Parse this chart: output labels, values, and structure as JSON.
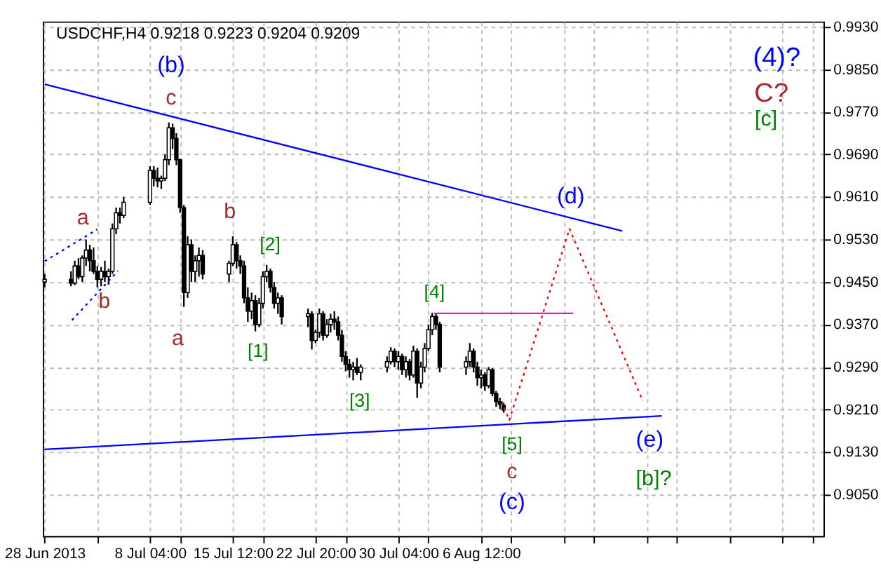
{
  "chart_data": {
    "type": "candlestick",
    "title": "USDCHF,H4  0.9218 0.9223 0.9204 0.9209",
    "x": [
      "2013-06-28T20:00",
      "2013-07-01T04:00",
      "2013-07-01T12:00",
      "2013-07-01T20:00",
      "2013-07-02T04:00",
      "2013-07-02T12:00",
      "2013-07-02T20:00",
      "2013-07-03T04:00",
      "2013-07-03T12:00",
      "2013-07-03T20:00",
      "2013-07-04T04:00",
      "2013-07-04T12:00",
      "2013-07-04T20:00",
      "2013-07-05T04:00",
      "2013-07-05T12:00",
      "2013-07-05T20:00",
      "2013-07-08T04:00",
      "2013-07-08T12:00",
      "2013-07-08T20:00",
      "2013-07-09T04:00",
      "2013-07-09T12:00",
      "2013-07-09T20:00",
      "2013-07-10T04:00",
      "2013-07-10T12:00",
      "2013-07-10T20:00",
      "2013-07-11T04:00",
      "2013-07-11T12:00",
      "2013-07-11T20:00",
      "2013-07-12T04:00",
      "2013-07-12T12:00",
      "2013-07-12T20:00",
      "2013-07-15T04:00",
      "2013-07-15T12:00",
      "2013-07-15T20:00",
      "2013-07-16T04:00",
      "2013-07-16T12:00",
      "2013-07-16T20:00",
      "2013-07-17T04:00",
      "2013-07-17T12:00",
      "2013-07-17T20:00",
      "2013-07-18T04:00",
      "2013-07-18T12:00",
      "2013-07-18T20:00",
      "2013-07-19T04:00",
      "2013-07-19T12:00",
      "2013-07-19T20:00",
      "2013-07-22T04:00",
      "2013-07-22T12:00",
      "2013-07-22T20:00",
      "2013-07-23T04:00",
      "2013-07-23T12:00",
      "2013-07-23T20:00",
      "2013-07-24T04:00",
      "2013-07-24T12:00",
      "2013-07-24T20:00",
      "2013-07-25T04:00",
      "2013-07-25T12:00",
      "2013-07-25T20:00",
      "2013-07-26T04:00",
      "2013-07-26T12:00",
      "2013-07-26T20:00",
      "2013-07-29T04:00",
      "2013-07-29T12:00",
      "2013-07-29T20:00",
      "2013-07-30T04:00",
      "2013-07-30T12:00",
      "2013-07-30T20:00",
      "2013-07-31T04:00",
      "2013-07-31T12:00",
      "2013-07-31T20:00",
      "2013-08-01T04:00",
      "2013-08-01T12:00",
      "2013-08-01T20:00",
      "2013-08-02T04:00",
      "2013-08-02T12:00",
      "2013-08-02T20:00",
      "2013-08-05T04:00",
      "2013-08-05T12:00",
      "2013-08-05T20:00",
      "2013-08-06T04:00",
      "2013-08-06T12:00",
      "2013-08-06T20:00",
      "2013-08-07T04:00",
      "2013-08-07T12:00",
      "2013-08-07T20:00",
      "2013-08-08T04:00",
      "2013-08-08T12:00"
    ],
    "ohlc": [
      [
        0.945,
        0.9465,
        0.944,
        0.9455
      ],
      [
        0.9455,
        0.947,
        0.9442,
        0.9448
      ],
      [
        0.9448,
        0.949,
        0.9444,
        0.948
      ],
      [
        0.948,
        0.9495,
        0.9455,
        0.946
      ],
      [
        0.946,
        0.95,
        0.945,
        0.9495
      ],
      [
        0.9495,
        0.953,
        0.948,
        0.951
      ],
      [
        0.951,
        0.952,
        0.947,
        0.949
      ],
      [
        0.949,
        0.9515,
        0.9465,
        0.947
      ],
      [
        0.947,
        0.948,
        0.944,
        0.9455
      ],
      [
        0.9455,
        0.9478,
        0.9442,
        0.947
      ],
      [
        0.947,
        0.949,
        0.945,
        0.946
      ],
      [
        0.946,
        0.9475,
        0.9445,
        0.947
      ],
      [
        0.947,
        0.956,
        0.9465,
        0.955
      ],
      [
        0.955,
        0.959,
        0.954,
        0.958
      ],
      [
        0.958,
        0.959,
        0.956,
        0.9575
      ],
      [
        0.9575,
        0.961,
        0.957,
        0.96
      ],
      [
        0.96,
        0.9668,
        0.9595,
        0.966
      ],
      [
        0.966,
        0.9668,
        0.963,
        0.9645
      ],
      [
        0.9645,
        0.9665,
        0.9628,
        0.964
      ],
      [
        0.964,
        0.965,
        0.9625,
        0.9645
      ],
      [
        0.9645,
        0.969,
        0.964,
        0.968
      ],
      [
        0.968,
        0.975,
        0.967,
        0.974
      ],
      [
        0.974,
        0.9748,
        0.97,
        0.972
      ],
      [
        0.972,
        0.973,
        0.967,
        0.968
      ],
      [
        0.968,
        0.9682,
        0.958,
        0.959
      ],
      [
        0.959,
        0.9595,
        0.9403,
        0.943
      ],
      [
        0.943,
        0.9536,
        0.942,
        0.952
      ],
      [
        0.952,
        0.953,
        0.945,
        0.947
      ],
      [
        0.947,
        0.95,
        0.945,
        0.949
      ],
      [
        0.949,
        0.9515,
        0.946,
        0.95
      ],
      [
        0.95,
        0.951,
        0.9455,
        0.9465
      ],
      [
        0.9465,
        0.949,
        0.945,
        0.9485
      ],
      [
        0.9485,
        0.9536,
        0.948,
        0.952
      ],
      [
        0.952,
        0.9525,
        0.9475,
        0.949
      ],
      [
        0.949,
        0.95,
        0.9465,
        0.948
      ],
      [
        0.948,
        0.949,
        0.941,
        0.942
      ],
      [
        0.942,
        0.944,
        0.9375,
        0.9395
      ],
      [
        0.9395,
        0.943,
        0.938,
        0.9415
      ],
      [
        0.9415,
        0.9425,
        0.9357,
        0.937
      ],
      [
        0.937,
        0.942,
        0.9365,
        0.941
      ],
      [
        0.941,
        0.947,
        0.94,
        0.946
      ],
      [
        0.946,
        0.9482,
        0.945,
        0.947
      ],
      [
        0.947,
        0.9475,
        0.943,
        0.944
      ],
      [
        0.944,
        0.945,
        0.94,
        0.941
      ],
      [
        0.941,
        0.943,
        0.939,
        0.942
      ],
      [
        0.942,
        0.9425,
        0.937,
        0.9385
      ],
      [
        0.9385,
        0.94,
        0.9365,
        0.939
      ],
      [
        0.939,
        0.9395,
        0.9323,
        0.934
      ],
      [
        0.934,
        0.936,
        0.9335,
        0.9355
      ],
      [
        0.9355,
        0.94,
        0.9345,
        0.939
      ],
      [
        0.939,
        0.9395,
        0.934,
        0.935
      ],
      [
        0.935,
        0.938,
        0.9345,
        0.937
      ],
      [
        0.937,
        0.939,
        0.9355,
        0.938
      ],
      [
        0.938,
        0.9395,
        0.936,
        0.9375
      ],
      [
        0.9375,
        0.9385,
        0.934,
        0.935
      ],
      [
        0.935,
        0.936,
        0.93,
        0.931
      ],
      [
        0.931,
        0.932,
        0.9282,
        0.9295
      ],
      [
        0.9295,
        0.9305,
        0.927,
        0.9285
      ],
      [
        0.9285,
        0.93,
        0.9265,
        0.929
      ],
      [
        0.929,
        0.9307,
        0.9275,
        0.928
      ],
      [
        0.928,
        0.9295,
        0.9265,
        0.929
      ],
      [
        0.929,
        0.931,
        0.928,
        0.93
      ],
      [
        0.93,
        0.9327,
        0.9295,
        0.932
      ],
      [
        0.932,
        0.9325,
        0.929,
        0.93
      ],
      [
        0.93,
        0.932,
        0.9285,
        0.931
      ],
      [
        0.931,
        0.9315,
        0.9275,
        0.9285
      ],
      [
        0.9285,
        0.931,
        0.927,
        0.93
      ],
      [
        0.93,
        0.9305,
        0.9265,
        0.9275
      ],
      [
        0.9275,
        0.933,
        0.927,
        0.932
      ],
      [
        0.932,
        0.9325,
        0.9232,
        0.926
      ],
      [
        0.926,
        0.93,
        0.925,
        0.929
      ],
      [
        0.929,
        0.9335,
        0.928,
        0.9325
      ],
      [
        0.9325,
        0.937,
        0.932,
        0.936
      ],
      [
        0.936,
        0.9392,
        0.935,
        0.9385
      ],
      [
        0.9385,
        0.939,
        0.936,
        0.937
      ],
      [
        0.937,
        0.9375,
        0.928,
        0.929
      ],
      [
        0.929,
        0.931,
        0.9275,
        0.93
      ],
      [
        0.93,
        0.9335,
        0.929,
        0.932
      ],
      [
        0.932,
        0.9325,
        0.928,
        0.929
      ],
      [
        0.929,
        0.93,
        0.9255,
        0.927
      ],
      [
        0.927,
        0.9285,
        0.925,
        0.9275
      ],
      [
        0.9275,
        0.928,
        0.9245,
        0.9255
      ],
      [
        0.9255,
        0.929,
        0.925,
        0.9285
      ],
      [
        0.9285,
        0.9288,
        0.9235,
        0.924
      ],
      [
        0.924,
        0.9245,
        0.9215,
        0.9225
      ],
      [
        0.9225,
        0.9232,
        0.9211,
        0.922
      ],
      [
        0.9218,
        0.9223,
        0.9204,
        0.9209
      ]
    ],
    "series": [
      {
        "type": "line",
        "color": "#0000ff",
        "line_style": "solid",
        "x": [
          "2013-06-28T20:00",
          "2013-08-19T00:00"
        ],
        "values": [
          0.9822,
          0.9546
        ]
      },
      {
        "type": "line",
        "color": "#0000ff",
        "line_style": "solid",
        "x": [
          "2013-06-28T20:00",
          "2013-08-22T12:00"
        ],
        "values": [
          0.9135,
          0.9198
        ]
      },
      {
        "type": "line",
        "color": "#0000ff",
        "line_style": "dotted",
        "x": [
          "2013-06-28T20:00",
          "2013-07-03T12:00"
        ],
        "values": [
          0.9489,
          0.9549
        ]
      },
      {
        "type": "line",
        "color": "#0000ff",
        "line_style": "dotted",
        "x": [
          "2013-07-01T06:00",
          "2013-07-05T08:00"
        ],
        "values": [
          0.9378,
          0.9471
        ]
      },
      {
        "type": "line",
        "color": "#ff00ff",
        "line_style": "solid",
        "x": [
          "2013-08-02T08:00",
          "2013-08-14T16:00"
        ],
        "values": [
          0.9391,
          0.9391
        ]
      },
      {
        "type": "line",
        "color": "#ff0000",
        "line_style": "dotted",
        "x": [
          "2013-08-08T08:00",
          "2013-08-09T00:00",
          "2013-08-14T08:00",
          "2013-08-20T20:00"
        ],
        "values": [
          0.9225,
          0.919,
          0.955,
          0.9226
        ]
      }
    ],
    "annotations": [
      "(b)",
      "c",
      "a",
      "b",
      "a",
      "b",
      "[2]",
      "[1]",
      "[3]",
      "[4]",
      "[5]",
      "c",
      "(c)",
      "(d)",
      "(e)",
      "[b]?",
      "(4)?",
      "C?",
      "[c]"
    ],
    "xlim": [
      "2013-06-28T16:00",
      "2013-09-05T20:00"
    ],
    "xticks": [
      {
        "value": "2013-06-28T20:00",
        "label": "28 Jun 2013"
      },
      {
        "value": "2013-07-03T12:00",
        "label": null
      },
      {
        "value": "2013-07-08T04:00",
        "label": "8 Jul 04:00"
      },
      {
        "value": "2013-07-10T20:00",
        "label": null
      },
      {
        "value": "2013-07-15T12:00",
        "label": "15 Jul 12:00"
      },
      {
        "value": "2013-07-18T04:00",
        "label": null
      },
      {
        "value": "2013-07-22T20:00",
        "label": "22 Jul 20:00"
      },
      {
        "value": "2013-07-25T12:00",
        "label": null
      },
      {
        "value": "2013-07-30T04:00",
        "label": "30 Jul 04:00"
      },
      {
        "value": "2013-08-01T20:00",
        "label": null
      },
      {
        "value": "2013-08-06T12:00",
        "label": "6 Aug 12:00"
      },
      {
        "value": "2013-08-09T04:00",
        "label": null
      },
      {
        "value": "2013-08-13T20:00",
        "label": null
      },
      {
        "value": "2013-08-16T12:00",
        "label": null
      },
      {
        "value": "2013-08-21T04:00",
        "label": null
      },
      {
        "value": "2013-08-23T20:00",
        "label": null
      },
      {
        "value": "2013-08-28T12:00",
        "label": null
      },
      {
        "value": "2013-09-02T04:00",
        "label": null
      },
      {
        "value": "2013-09-04T20:00",
        "label": null
      }
    ],
    "ylim": [
      0.8972,
      0.994
    ],
    "yticks": [
      {
        "value": 0.905,
        "label": "0.9050"
      },
      {
        "value": 0.913,
        "label": "0.9130"
      },
      {
        "value": 0.921,
        "label": "0.9210"
      },
      {
        "value": 0.929,
        "label": "0.9290"
      },
      {
        "value": 0.937,
        "label": "0.9370"
      },
      {
        "value": 0.945,
        "label": "0.9450"
      },
      {
        "value": 0.953,
        "label": "0.9530"
      },
      {
        "value": 0.961,
        "label": "0.9610"
      },
      {
        "value": 0.969,
        "label": "0.9690"
      },
      {
        "value": 0.977,
        "label": "0.9770"
      },
      {
        "value": 0.985,
        "label": "0.9850"
      },
      {
        "value": 0.993,
        "label": "0.9930"
      }
    ],
    "grid": true
  }
}
